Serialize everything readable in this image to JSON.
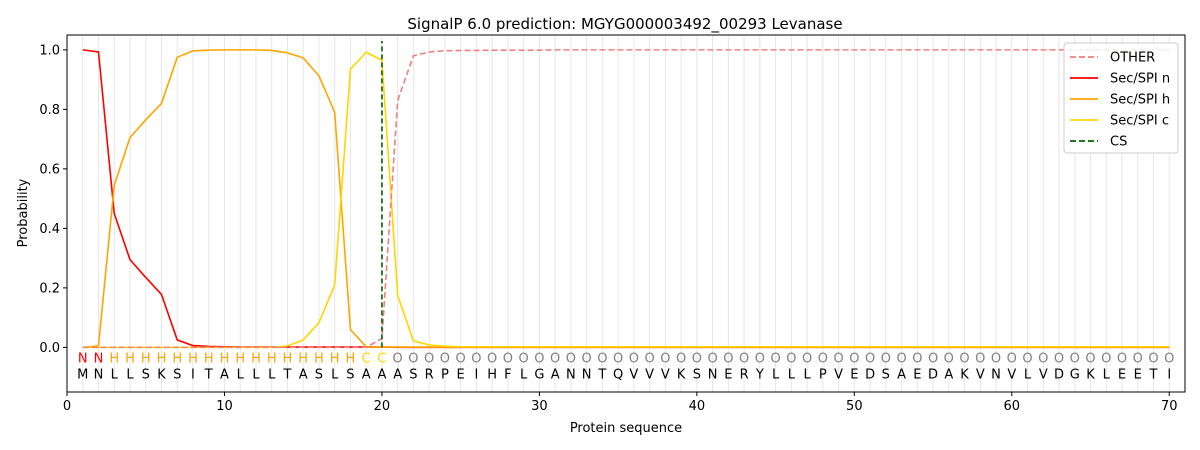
{
  "chart_data": {
    "type": "line",
    "title": "SignalP 6.0 prediction: MGYG000003492_00293 Levanase",
    "xlabel": "Protein sequence",
    "ylabel": "Probability",
    "xlim": [
      0,
      71
    ],
    "ylim": [
      -0.15,
      1.05
    ],
    "xticks": [
      0,
      10,
      20,
      30,
      40,
      50,
      60,
      70
    ],
    "yticks": [
      0.0,
      0.2,
      0.4,
      0.6,
      0.8,
      1.0
    ],
    "legend_position": "top-right",
    "cleavage_site": 20,
    "sequence": "MNLLSKSITALLLTASLSAAASRPEIHFLGANNTQVVVKSNERYLLLPVEDSAEDAKVNVLVDGKLEETI",
    "labels": "NNHHHHHHHHHHHHHHHHCCOOOOOOOOOOOOOOOOOOOOOOOOOOOOOOOOOOOOOOOOOOOOOOOOOO",
    "label_colors": {
      "N": "#ff0000",
      "H": "#ffa500",
      "C": "#ffd700",
      "O": "#808080"
    },
    "series": [
      {
        "name": "OTHER",
        "color": "#f08080",
        "dash": true,
        "values": [
          0,
          0,
          0,
          0,
          0,
          0,
          0,
          0,
          0,
          0,
          0,
          0,
          0,
          0,
          0,
          0,
          0,
          0,
          0,
          0.03,
          0.83,
          0.98,
          0.993,
          0.997,
          0.998,
          0.998,
          0.999,
          0.999,
          0.999,
          0.999,
          1,
          1,
          1,
          1,
          1,
          1,
          1,
          1,
          1,
          1,
          1,
          1,
          1,
          1,
          1,
          1,
          1,
          1,
          1,
          1,
          1,
          1,
          1,
          1,
          1,
          1,
          1,
          1,
          1,
          1,
          1,
          1,
          1,
          1,
          1,
          1,
          1,
          1,
          1,
          1
        ]
      },
      {
        "name": "Sec/SPI n",
        "color": "#ff0000",
        "dash": false,
        "values": [
          1.0,
          0.993,
          0.45,
          0.295,
          0.235,
          0.178,
          0.025,
          0.006,
          0.003,
          0.002,
          0.001,
          0.001,
          0.001,
          0.001,
          0.001,
          0.001,
          0.001,
          0.001,
          0.001,
          0.001,
          0,
          0,
          0,
          0,
          0,
          0,
          0,
          0,
          0,
          0,
          0,
          0,
          0,
          0,
          0,
          0,
          0,
          0,
          0,
          0,
          0,
          0,
          0,
          0,
          0,
          0,
          0,
          0,
          0,
          0,
          0,
          0,
          0,
          0,
          0,
          0,
          0,
          0,
          0,
          0,
          0,
          0,
          0,
          0,
          0,
          0,
          0,
          0,
          0,
          0
        ]
      },
      {
        "name": "Sec/SPI h",
        "color": "#ffa500",
        "dash": false,
        "values": [
          0,
          0.005,
          0.545,
          0.705,
          0.765,
          0.82,
          0.975,
          0.997,
          0.999,
          1.0,
          1.0,
          1.0,
          0.998,
          0.99,
          0.973,
          0.913,
          0.79,
          0.06,
          0.002,
          0.001,
          0.001,
          0.001,
          0.001,
          0.001,
          0.001,
          0.001,
          0.001,
          0.001,
          0.001,
          0.001,
          0.001,
          0.001,
          0.001,
          0.001,
          0.001,
          0.001,
          0.001,
          0.001,
          0.001,
          0.001,
          0.001,
          0.001,
          0.001,
          0.001,
          0.001,
          0.001,
          0.001,
          0.001,
          0.001,
          0.001,
          0.001,
          0.001,
          0.001,
          0.001,
          0.001,
          0.001,
          0.001,
          0.001,
          0.001,
          0.001,
          0.001,
          0.001,
          0.001,
          0.001,
          0.001,
          0.001,
          0.001,
          0.001,
          0.001,
          0.001
        ]
      },
      {
        "name": "Sec/SPI c",
        "color": "#ffd700",
        "dash": false,
        "values": [
          0,
          0,
          0,
          0,
          0,
          0,
          0,
          0,
          0,
          0,
          0,
          0,
          0,
          0.005,
          0.025,
          0.083,
          0.21,
          0.935,
          0.992,
          0.965,
          0.175,
          0.022,
          0.008,
          0.004,
          0.002,
          0.002,
          0.002,
          0.002,
          0.002,
          0.002,
          0.002,
          0.002,
          0.002,
          0.002,
          0.002,
          0.002,
          0.002,
          0.002,
          0.002,
          0.002,
          0.002,
          0.002,
          0.002,
          0.002,
          0.002,
          0.002,
          0.002,
          0.002,
          0.002,
          0.002,
          0.002,
          0.002,
          0.002,
          0.002,
          0.002,
          0.002,
          0.002,
          0.002,
          0.002,
          0.002,
          0.002,
          0.002,
          0.002,
          0.002,
          0.002,
          0.002,
          0.002,
          0.002,
          0.002,
          0.002
        ]
      },
      {
        "name": "CS",
        "color": "#006400",
        "dash": true,
        "values": []
      }
    ]
  }
}
